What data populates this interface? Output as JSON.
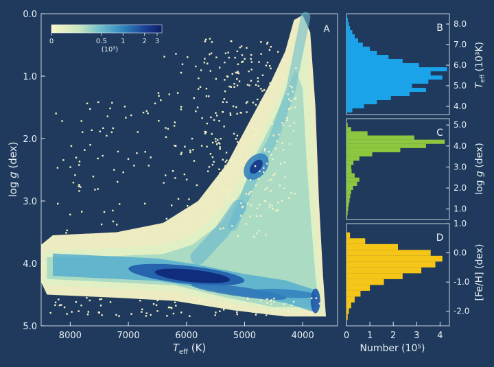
{
  "chart_data": [
    {
      "panel": "A",
      "type": "heatmap",
      "panel_label": "A",
      "xlabel_main": "T",
      "xlabel_sub": "eff",
      "xlabel_unit": "(K)",
      "ylabel": "log g (dex)",
      "ylabel_pre": "log ",
      "ylabel_var": "g",
      "ylabel_post": " (dex)",
      "xlim": [
        8500,
        3400
      ],
      "ylim": [
        0.0,
        5.0
      ],
      "xticks": [
        8000,
        7000,
        6000,
        5000,
        4000,
        3000
      ],
      "xtick_labels": [
        "8000",
        "7000",
        "6000",
        "5000",
        "4000"
      ],
      "yticks": [
        0.0,
        1.0,
        2.0,
        3.0,
        4.0,
        5.0
      ],
      "ytick_labels": [
        "0.0",
        "1.0",
        "2.0",
        "3.0",
        "4.0",
        "5.0"
      ],
      "colorbar": {
        "ticks": [
          0,
          0.5,
          1,
          2,
          3
        ],
        "tick_labels": [
          "0",
          "0.5",
          "1",
          "2",
          "3"
        ],
        "unit": "(10³)"
      },
      "density_features": [
        {
          "name": "main sequence",
          "teff": [
            8300,
            6500,
            5800,
            5000,
            4300,
            3800
          ],
          "logg": [
            4.02,
            4.1,
            4.2,
            4.35,
            4.45,
            4.6
          ]
        },
        {
          "name": "red clump",
          "teff": 4800,
          "logg": 2.45
        },
        {
          "name": "giant branch",
          "teff": [
            5200,
            4800,
            4500,
            4200,
            4050,
            3950
          ],
          "logg": [
            3.4,
            2.5,
            2.0,
            1.2,
            0.5,
            0.05
          ]
        }
      ]
    },
    {
      "panel": "B",
      "type": "bar",
      "orientation": "horizontal",
      "panel_label": "B",
      "ylabel": "Teff (10³K)",
      "ylabel_main": "T",
      "ylabel_sub": "eff",
      "ylabel_unit": " (10³K)",
      "ylim": [
        3.6,
        8.5
      ],
      "yticks": [
        "4.0",
        "5.0",
        "6.0",
        "7.0",
        "8.0"
      ],
      "ytick_values": [
        4.0,
        5.0,
        6.0,
        7.0,
        8.0
      ],
      "color": "#1aa3e8",
      "bins": [
        3.8,
        4.0,
        4.2,
        4.4,
        4.6,
        4.8,
        5.0,
        5.2,
        5.4,
        5.6,
        5.8,
        6.0,
        6.2,
        6.4,
        6.6,
        6.8,
        7.0,
        7.2,
        7.4,
        7.6,
        7.8,
        8.0,
        8.2,
        8.4
      ],
      "values": [
        0.25,
        0.75,
        1.3,
        1.9,
        2.7,
        3.4,
        2.8,
        3.5,
        4.1,
        3.6,
        4.3,
        3.1,
        2.4,
        1.8,
        1.3,
        1.0,
        0.7,
        0.5,
        0.35,
        0.25,
        0.15,
        0.1,
        0.06,
        0.03
      ]
    },
    {
      "panel": "C",
      "type": "bar",
      "orientation": "horizontal",
      "panel_label": "C",
      "ylabel": "log g (dex)",
      "ylabel_pre": "log ",
      "ylabel_var": "g",
      "ylabel_post": " (dex)",
      "ylim": [
        0.5,
        5.3
      ],
      "yticks": [
        "1.0",
        "2.0",
        "3.0",
        "4.0",
        "5.0"
      ],
      "ytick_values": [
        1.0,
        2.0,
        3.0,
        4.0,
        5.0
      ],
      "color": "#8dc63f",
      "bins": [
        0.6,
        0.8,
        1.0,
        1.2,
        1.4,
        1.6,
        1.8,
        2.0,
        2.2,
        2.4,
        2.6,
        2.8,
        3.0,
        3.2,
        3.4,
        3.6,
        3.8,
        4.0,
        4.2,
        4.4,
        4.6,
        4.8,
        5.0
      ],
      "values": [
        0.03,
        0.05,
        0.07,
        0.1,
        0.13,
        0.16,
        0.2,
        0.28,
        0.45,
        0.55,
        0.35,
        0.22,
        0.2,
        0.3,
        0.55,
        1.1,
        2.3,
        3.4,
        4.2,
        2.9,
        0.9,
        0.2,
        0.05
      ]
    },
    {
      "panel": "D",
      "type": "bar",
      "orientation": "horizontal",
      "panel_label": "D",
      "ylabel": "[Fe/H] (dex)",
      "ylim": [
        -2.5,
        1.0
      ],
      "yticks": [
        "-2.0",
        "-1.0",
        "0.0",
        "1.0"
      ],
      "ytick_values": [
        -2.0,
        -1.0,
        0.0,
        1.0
      ],
      "color": "#f5c518",
      "bins": [
        -2.2,
        -2.0,
        -1.8,
        -1.6,
        -1.4,
        -1.2,
        -1.0,
        -0.8,
        -0.6,
        -0.4,
        -0.2,
        0.0,
        0.2,
        0.4,
        0.6
      ],
      "values": [
        0.05,
        0.1,
        0.2,
        0.35,
        0.6,
        1.0,
        1.6,
        2.4,
        3.2,
        3.8,
        4.1,
        3.6,
        2.2,
        0.8,
        0.15
      ]
    }
  ],
  "histogram_xaxis": {
    "xlabel": "Number (10⁵)",
    "xlim": [
      0,
      4.4
    ],
    "xtick_values": [
      0,
      1,
      2,
      3,
      4
    ],
    "xtick_labels": [
      "0",
      "1",
      "2",
      "3",
      "4"
    ]
  },
  "colors": {
    "background": "#1f3a5c",
    "heat_scale": [
      "#fbf6c8",
      "#b9e0bd",
      "#5fb6cf",
      "#2a7fba",
      "#1b3f96",
      "#0d1f66"
    ]
  }
}
